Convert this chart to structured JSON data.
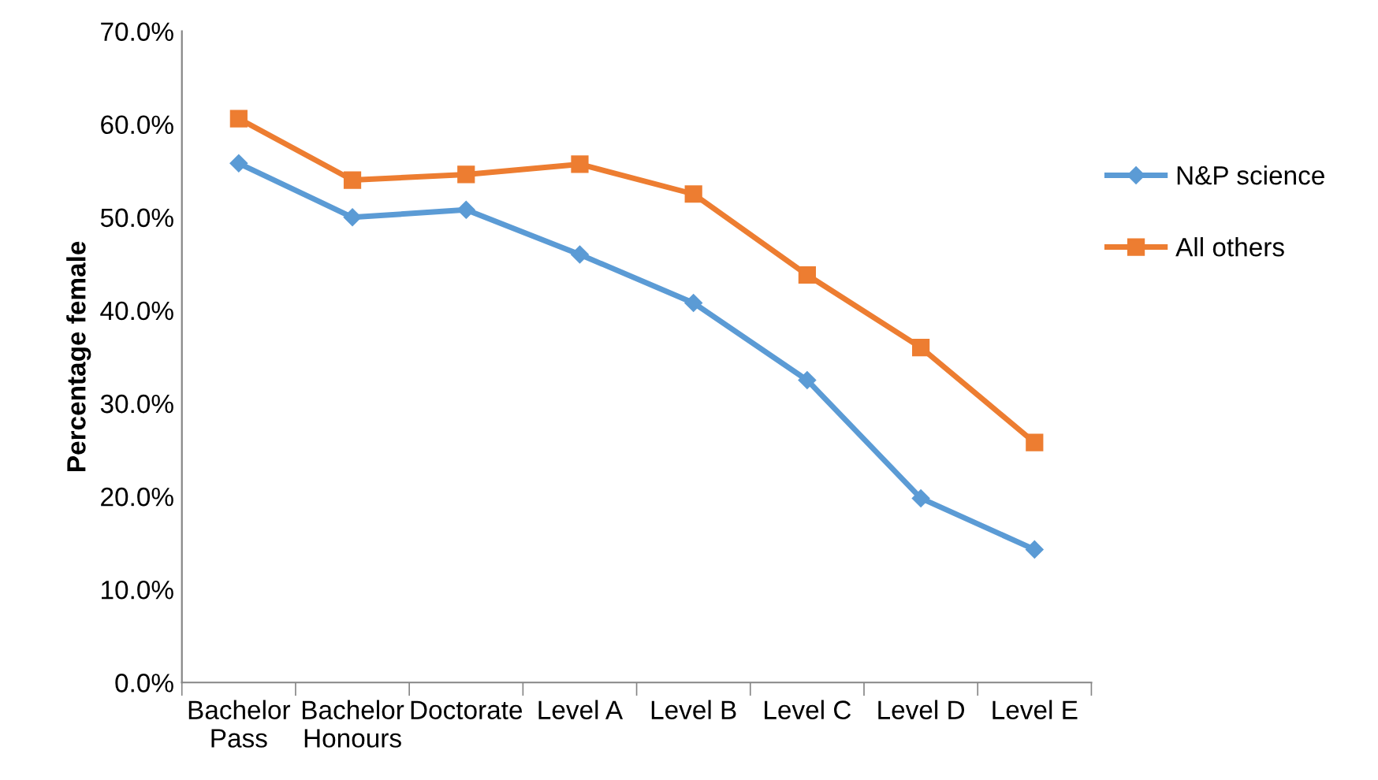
{
  "chart_data": {
    "type": "line",
    "ylabel": "Percentage female",
    "categories": [
      "Bachelor\nPass",
      "Bachelor\nHonours",
      "Doctorate",
      "Level A",
      "Level B",
      "Level C",
      "Level D",
      "Level E"
    ],
    "series": [
      {
        "name": "N&P science",
        "color": "#5b9bd5",
        "marker": "diamond",
        "values": [
          55.8,
          50.0,
          50.8,
          46.0,
          40.8,
          32.5,
          19.8,
          14.3
        ]
      },
      {
        "name": "All others",
        "color": "#ed7d31",
        "marker": "square",
        "values": [
          60.6,
          54.0,
          54.6,
          55.7,
          52.5,
          43.8,
          36.0,
          25.8
        ]
      }
    ],
    "ylim": [
      0,
      70
    ],
    "yticks": [
      {
        "value": 0,
        "label": "0.0%"
      },
      {
        "value": 10,
        "label": "10.0%"
      },
      {
        "value": 20,
        "label": "20.0%"
      },
      {
        "value": 30,
        "label": "30.0%"
      },
      {
        "value": 40,
        "label": "40.0%"
      },
      {
        "value": 50,
        "label": "50.0%"
      },
      {
        "value": 60,
        "label": "60.0%"
      },
      {
        "value": 70,
        "label": "70.0%"
      }
    ],
    "grid": false,
    "legend": "right",
    "line_style": "solid"
  }
}
